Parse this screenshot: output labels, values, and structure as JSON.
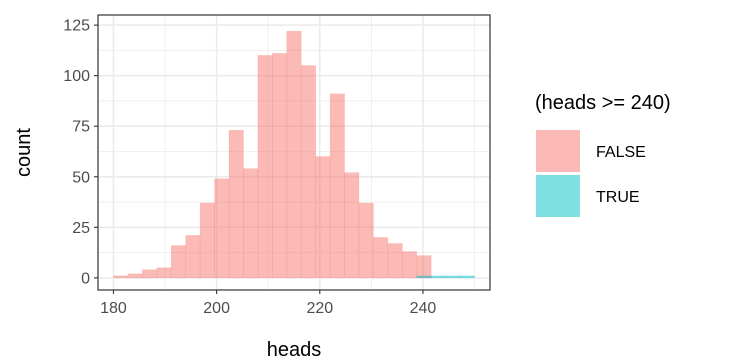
{
  "chart_data": {
    "type": "bar",
    "subtype": "histogram",
    "xlabel": "heads",
    "ylabel": "count",
    "xlim": [
      177,
      253
    ],
    "ylim": [
      -6,
      130
    ],
    "xticks": [
      180,
      200,
      220,
      240
    ],
    "yticks": [
      0,
      25,
      50,
      75,
      100,
      125
    ],
    "bin_width": 2.8,
    "grid": true,
    "legend": {
      "title": "(heads >= 240)",
      "position": "right",
      "entries": [
        {
          "label": "FALSE",
          "color": "#F8766D"
        },
        {
          "label": "TRUE",
          "color": "#00BFC4"
        }
      ]
    },
    "series": [
      {
        "name": "FALSE",
        "color": "#F8766D",
        "bins": [
          {
            "x": 181.4,
            "count": 1
          },
          {
            "x": 184.2,
            "count": 2
          },
          {
            "x": 187.0,
            "count": 4
          },
          {
            "x": 189.8,
            "count": 5
          },
          {
            "x": 192.6,
            "count": 16
          },
          {
            "x": 195.4,
            "count": 21
          },
          {
            "x": 198.2,
            "count": 37
          },
          {
            "x": 201.0,
            "count": 49
          },
          {
            "x": 203.8,
            "count": 73
          },
          {
            "x": 206.6,
            "count": 54
          },
          {
            "x": 209.4,
            "count": 110
          },
          {
            "x": 212.2,
            "count": 111
          },
          {
            "x": 215.0,
            "count": 122
          },
          {
            "x": 217.8,
            "count": 105
          },
          {
            "x": 220.6,
            "count": 60
          },
          {
            "x": 223.4,
            "count": 91
          },
          {
            "x": 226.2,
            "count": 52
          },
          {
            "x": 229.0,
            "count": 37
          },
          {
            "x": 231.8,
            "count": 20
          },
          {
            "x": 234.6,
            "count": 17
          },
          {
            "x": 237.4,
            "count": 13
          },
          {
            "x": 240.2,
            "count": 11
          }
        ]
      },
      {
        "name": "TRUE",
        "color": "#00BFC4",
        "bins": [
          {
            "x": 240.2,
            "count": 1
          },
          {
            "x": 243.0,
            "count": 1
          },
          {
            "x": 245.8,
            "count": 1
          },
          {
            "x": 248.6,
            "count": 1
          }
        ]
      }
    ]
  }
}
